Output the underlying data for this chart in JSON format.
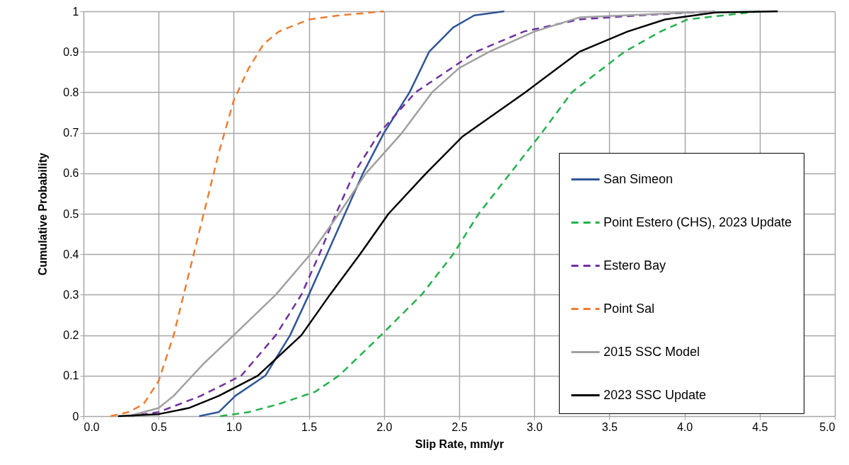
{
  "chart_data": {
    "type": "line",
    "xlabel": "Slip Rate, mm/yr",
    "ylabel": "Cumulative Probability",
    "xlim": [
      0,
      5
    ],
    "ylim": [
      0,
      1
    ],
    "xticks": [
      {
        "value": 0,
        "label": "0.0"
      },
      {
        "value": 0.5,
        "label": "0.5"
      },
      {
        "value": 1,
        "label": "1.0"
      },
      {
        "value": 1.5,
        "label": "1.5"
      },
      {
        "value": 2,
        "label": "2.0"
      },
      {
        "value": 2.5,
        "label": "2.5"
      },
      {
        "value": 3,
        "label": "3.0"
      },
      {
        "value": 3.5,
        "label": "3.5"
      },
      {
        "value": 4,
        "label": "4.0"
      },
      {
        "value": 4.5,
        "label": "4.5"
      },
      {
        "value": 5,
        "label": "5.0"
      }
    ],
    "yticks": [
      0,
      0.1,
      0.2,
      0.3,
      0.4,
      0.5,
      0.6,
      0.7,
      0.8,
      0.9,
      1
    ],
    "grid": true,
    "legend": "right",
    "marker": "none",
    "series": [
      {
        "name": "San Simeon",
        "color": "#2f5597",
        "line_style": "solid",
        "x": [
          0.77,
          0.9,
          1.01,
          1.21,
          1.375,
          1.5,
          1.62,
          1.74,
          1.86,
          2.0,
          2.17,
          2.3,
          2.46,
          2.6,
          2.8
        ],
        "values": [
          0,
          0.01,
          0.05,
          0.1,
          0.2,
          0.3,
          0.4,
          0.5,
          0.6,
          0.7,
          0.8,
          0.9,
          0.96,
          0.99,
          1.0
        ]
      },
      {
        "name": "Point Estero (CHS), 2023 Update",
        "color": "#22b14c",
        "line_style": "dashed",
        "x": [
          0.91,
          1.1,
          1.3,
          1.54,
          1.7,
          1.98,
          2.25,
          2.46,
          2.63,
          2.84,
          3.05,
          3.25,
          3.6,
          3.84,
          4.02,
          4.5
        ],
        "values": [
          0,
          0.01,
          0.03,
          0.06,
          0.1,
          0.2,
          0.3,
          0.4,
          0.5,
          0.6,
          0.7,
          0.8,
          0.9,
          0.95,
          0.98,
          1.0
        ]
      },
      {
        "name": "Estero Bay",
        "color": "#7030a0",
        "line_style": "dashed",
        "x": [
          0.3,
          0.5,
          0.78,
          1.05,
          1.28,
          1.45,
          1.57,
          1.68,
          1.8,
          1.97,
          2.21,
          2.61,
          2.93,
          3.3,
          3.7,
          4.2
        ],
        "values": [
          0,
          0.01,
          0.05,
          0.1,
          0.2,
          0.3,
          0.4,
          0.5,
          0.6,
          0.7,
          0.8,
          0.9,
          0.95,
          0.98,
          0.99,
          1.0
        ]
      },
      {
        "name": "Point Sal",
        "color": "#ed7d31",
        "line_style": "dashed",
        "x": [
          0.18,
          0.3,
          0.4,
          0.5,
          0.6,
          0.7,
          0.8,
          0.9,
          1.0,
          1.1,
          1.2,
          1.3,
          1.5,
          1.7,
          2.0
        ],
        "values": [
          0,
          0.01,
          0.03,
          0.087,
          0.2,
          0.35,
          0.5,
          0.65,
          0.78,
          0.86,
          0.92,
          0.95,
          0.98,
          0.99,
          1.0
        ]
      },
      {
        "name": "2015 SSC Model",
        "color": "#a0a0a0",
        "line_style": "solid",
        "x": [
          0.3,
          0.5,
          0.6,
          0.7,
          0.8,
          1.0,
          1.28,
          1.51,
          1.7,
          1.88,
          2.12,
          2.32,
          2.5,
          2.7,
          3.0,
          3.3,
          3.6,
          4.2
        ],
        "values": [
          0,
          0.02,
          0.05,
          0.09,
          0.13,
          0.2,
          0.3,
          0.4,
          0.5,
          0.6,
          0.7,
          0.8,
          0.86,
          0.9,
          0.95,
          0.985,
          0.99,
          1.0
        ]
      },
      {
        "name": "2023 SSC Update",
        "color": "#000000",
        "line_style": "solid",
        "x": [
          0.23,
          0.5,
          0.7,
          0.9,
          1.16,
          1.45,
          1.64,
          1.84,
          2.03,
          2.28,
          2.52,
          2.94,
          3.3,
          3.62,
          3.87,
          4.2,
          4.62
        ],
        "values": [
          0,
          0.005,
          0.02,
          0.05,
          0.1,
          0.2,
          0.3,
          0.4,
          0.5,
          0.6,
          0.69,
          0.8,
          0.9,
          0.95,
          0.98,
          0.997,
          1.0
        ]
      }
    ]
  }
}
